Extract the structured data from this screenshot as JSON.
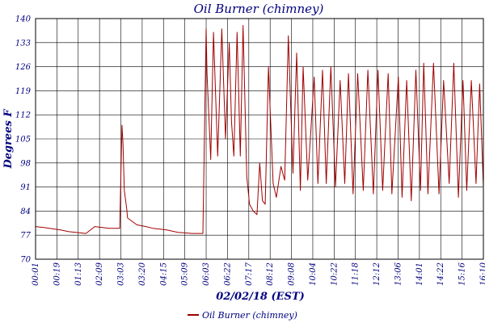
{
  "chart_data": {
    "type": "line",
    "title": "Oil Burner (chimney)",
    "xlabel": "02/02/18 (EST)",
    "ylabel": "Degrees F",
    "ylim": [
      70,
      140
    ],
    "yticks": [
      70,
      77,
      84,
      91,
      98,
      105,
      112,
      119,
      126,
      133,
      140
    ],
    "xlim": [
      "00:01",
      "16:10"
    ],
    "xticks": [
      "00:01",
      "00:19",
      "01:13",
      "02:09",
      "03:03",
      "03:20",
      "04:15",
      "05:09",
      "06:03",
      "06:22",
      "07:17",
      "08:12",
      "09:08",
      "10:04",
      "10:22",
      "11:18",
      "12:12",
      "13:06",
      "14:01",
      "14:22",
      "15:16",
      "16:10"
    ],
    "grid": true,
    "legend": "bottom",
    "colors": {
      "series": "#a00000",
      "grid": "#000000",
      "text": "#000080"
    },
    "series": [
      {
        "name": "Oil Burner (chimney)",
        "x": [
          "00:01",
          "00:19",
          "00:55",
          "01:13",
          "01:50",
          "02:09",
          "02:40",
          "03:03",
          "03:08",
          "03:10",
          "03:13",
          "03:18",
          "03:20",
          "03:40",
          "04:00",
          "04:15",
          "04:45",
          "05:09",
          "05:40",
          "06:03",
          "06:10",
          "06:12",
          "06:20",
          "06:26",
          "06:35",
          "06:44",
          "06:52",
          "07:00",
          "07:05",
          "07:10",
          "07:17",
          "07:24",
          "07:30",
          "07:38",
          "07:44",
          "07:52",
          "08:00",
          "08:06",
          "08:12",
          "08:18",
          "08:25",
          "08:35",
          "08:42",
          "08:52",
          "09:00",
          "09:08",
          "09:18",
          "09:26",
          "09:34",
          "09:40",
          "09:50",
          "10:04",
          "10:12",
          "10:22",
          "10:30",
          "10:40",
          "10:50",
          "11:00",
          "11:10",
          "11:18",
          "11:28",
          "11:38",
          "11:50",
          "12:00",
          "12:12",
          "12:22",
          "12:32",
          "12:44",
          "12:52",
          "13:06",
          "13:14",
          "13:24",
          "13:34",
          "13:44",
          "13:54",
          "14:01",
          "14:10",
          "14:22",
          "14:34",
          "14:44",
          "14:56",
          "15:06",
          "15:16",
          "15:26",
          "15:34",
          "15:44",
          "15:54",
          "16:02",
          "16:10"
        ],
        "values": [
          79.5,
          79.2,
          78.5,
          78.0,
          77.5,
          79.5,
          79.0,
          79.0,
          109,
          104,
          90,
          85,
          82,
          80,
          79.5,
          79,
          78.5,
          77.8,
          77.5,
          77.5,
          137,
          124,
          99,
          136,
          100,
          137,
          105,
          133,
          110,
          100,
          136,
          100,
          138,
          94,
          86,
          84,
          83,
          98,
          87,
          86,
          126,
          92,
          88,
          97,
          93,
          135,
          95,
          130,
          90,
          126,
          93,
          123,
          92,
          125,
          92,
          126,
          91,
          122,
          92,
          124,
          89,
          124,
          90,
          125,
          89,
          125,
          90,
          124,
          89,
          123,
          88,
          122,
          87,
          125,
          90,
          127,
          89,
          127,
          89,
          122,
          92,
          127,
          88,
          122,
          90,
          122,
          92,
          121,
          91
        ]
      }
    ]
  }
}
